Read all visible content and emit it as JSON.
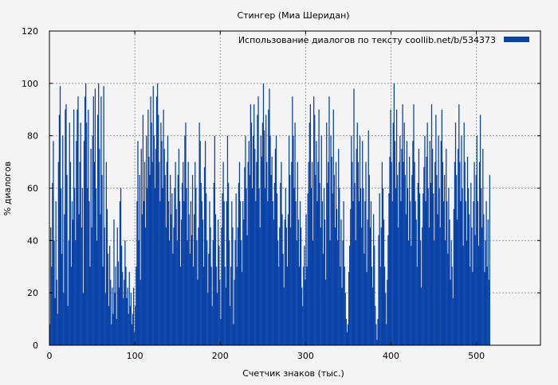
{
  "chart_data": {
    "type": "bar",
    "title": "Стингер (Миа Шеридан)",
    "xlabel": "Счетчик знаков (тыс.)",
    "ylabel": "% диалогов",
    "xlim": [
      0,
      575
    ],
    "ylim": [
      0,
      120
    ],
    "xticks": [
      0,
      100,
      200,
      300,
      400,
      500
    ],
    "yticks": [
      0,
      20,
      40,
      60,
      80,
      100,
      120
    ],
    "grid": true,
    "legend_position": "top-right",
    "series": [
      {
        "name": "Использование диалогов по тексту  coollib.net/b/534373",
        "color": "#0a43a8",
        "x_step_thousands": 1,
        "values": [
          8,
          45,
          30,
          62,
          78,
          40,
          18,
          55,
          25,
          12,
          70,
          88,
          99,
          60,
          35,
          80,
          20,
          50,
          90,
          92,
          65,
          15,
          40,
          85,
          70,
          30,
          55,
          48,
          90,
          60,
          40,
          78,
          90,
          95,
          50,
          70,
          85,
          45,
          60,
          20,
          78,
          95,
          100,
          85,
          60,
          90,
          55,
          30,
          75,
          45,
          80,
          95,
          70,
          98,
          60,
          40,
          88,
          100,
          75,
          50,
          95,
          65,
          30,
          99,
          45,
          20,
          70,
          52,
          35,
          15,
          38,
          25,
          8,
          22,
          12,
          48,
          20,
          30,
          10,
          45,
          32,
          22,
          55,
          60,
          38,
          28,
          18,
          25,
          40,
          30,
          18,
          22,
          12,
          28,
          15,
          20,
          8,
          12,
          22,
          5,
          15,
          30,
          55,
          78,
          40,
          65,
          25,
          75,
          50,
          88,
          55,
          70,
          45,
          80,
          60,
          90,
          72,
          65,
          95,
          85,
          70,
          99,
          80,
          60,
          75,
          95,
          100,
          88,
          70,
          55,
          85,
          78,
          60,
          90,
          75,
          65,
          45,
          70,
          80,
          55,
          40,
          65,
          50,
          58,
          35,
          45,
          60,
          70,
          52,
          40,
          65,
          75,
          55,
          30,
          48,
          62,
          70,
          55,
          80,
          85,
          60,
          40,
          70,
          50,
          35,
          55,
          42,
          65,
          30,
          50,
          70,
          60,
          40,
          25,
          45,
          85,
          78,
          62,
          55,
          48,
          30,
          68,
          78,
          58,
          40,
          20,
          35,
          55,
          45,
          30,
          15,
          40,
          62,
          80,
          50,
          30,
          20,
          48,
          38,
          25,
          10,
          45,
          58,
          70,
          55,
          30,
          22,
          55,
          80,
          62,
          40,
          15,
          30,
          55,
          45,
          8,
          25,
          40,
          58,
          30,
          45,
          62,
          70,
          55,
          40,
          28,
          55,
          48,
          68,
          80,
          60,
          42,
          70,
          78,
          65,
          92,
          85,
          60,
          80,
          92,
          75,
          55,
          70,
          88,
          95,
          60,
          45,
          80,
          72,
          85,
          100,
          82,
          60,
          88,
          70,
          55,
          90,
          98,
          80,
          65,
          72,
          55,
          48,
          62,
          75,
          80,
          58,
          40,
          30,
          45,
          62,
          70,
          50,
          35,
          22,
          48,
          60,
          45,
          30,
          50,
          80,
          65,
          45,
          70,
          95,
          80,
          60,
          85,
          55,
          40,
          70,
          48,
          30,
          55,
          45,
          22,
          15,
          30,
          38,
          25,
          50,
          30,
          58,
          70,
          85,
          92,
          60,
          70,
          40,
          95,
          88,
          65,
          78,
          55,
          70,
          90,
          62,
          45,
          80,
          55,
          35,
          60,
          48,
          25,
          85,
          62,
          70,
          95,
          40,
          80,
          72,
          58,
          90,
          65,
          45,
          70,
          52,
          40,
          75,
          60,
          30,
          48,
          22,
          40,
          55,
          30,
          20,
          10,
          5,
          8,
          28,
          38,
          52,
          80,
          70,
          55,
          98,
          62,
          40,
          75,
          85,
          70,
          55,
          80,
          60,
          45,
          78,
          60,
          35,
          55,
          70,
          28,
          48,
          82,
          65,
          45,
          55,
          30,
          22,
          50,
          38,
          15,
          8,
          2,
          10,
          42,
          58,
          30,
          45,
          70,
          60,
          48,
          30,
          20,
          8,
          25,
          42,
          58,
          72,
          90,
          70,
          55,
          85,
          100,
          78,
          60,
          90,
          65,
          45,
          70,
          80,
          55,
          75,
          92,
          70,
          85,
          65,
          50,
          78,
          60,
          40,
          72,
          55,
          38,
          65,
          78,
          92,
          70,
          55,
          48,
          30,
          62,
          75,
          58,
          40,
          22,
          45,
          58,
          68,
          80,
          55,
          72,
          85,
          60,
          45,
          78,
          62,
          92,
          75,
          58,
          40,
          70,
          88,
          65,
          50,
          80,
          60,
          45,
          78,
          90,
          70,
          55,
          65,
          40,
          75,
          55,
          35,
          60,
          48,
          25,
          40,
          30,
          18,
          52,
          70,
          85,
          65,
          48,
          75,
          92,
          70,
          55,
          80,
          60,
          38,
          85,
          70,
          55,
          40,
          72,
          60,
          50,
          30,
          62,
          45,
          28,
          55,
          70,
          42,
          65,
          80,
          55,
          38,
          70,
          88,
          60,
          45,
          75,
          50,
          28,
          40,
          55,
          30,
          48,
          25,
          65
        ]
      }
    ]
  }
}
